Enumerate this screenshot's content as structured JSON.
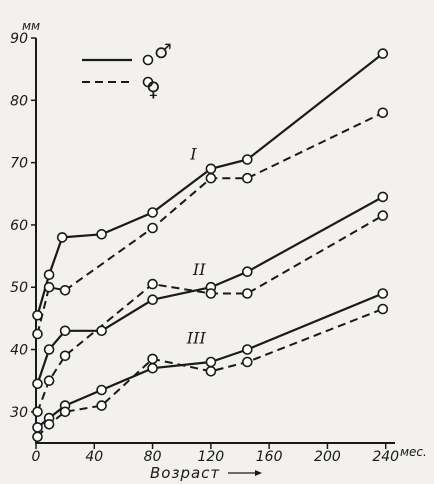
{
  "chart_data": {
    "type": "line",
    "xlabel": "Возраст",
    "xunit": "мес.",
    "yunit": "мм",
    "xlim": [
      0,
      245
    ],
    "ylim": [
      25,
      90
    ],
    "xticks": [
      0,
      40,
      80,
      120,
      160,
      200,
      240
    ],
    "xtick_labels": [
      "0",
      "40",
      "80",
      "120",
      "160",
      "200",
      "240"
    ],
    "yticks": [
      30,
      40,
      50,
      60,
      70,
      80,
      90
    ],
    "ytick_labels": [
      "30",
      "40",
      "50",
      "60",
      "70",
      "80",
      "90"
    ],
    "legend": {
      "position": "top-left",
      "entries": [
        {
          "symbol": "♂",
          "style": "solid"
        },
        {
          "symbol": "♀",
          "style": "dashed"
        }
      ]
    },
    "groups": [
      {
        "label": "I",
        "male": [
          [
            1,
            45.5
          ],
          [
            9,
            52
          ],
          [
            18,
            58
          ],
          [
            45,
            58.5
          ],
          [
            80,
            62
          ],
          [
            120,
            69
          ],
          [
            145,
            70.5
          ],
          [
            238,
            87.5
          ]
        ],
        "female": [
          [
            1,
            42.5
          ],
          [
            9,
            50
          ],
          [
            20,
            49.5
          ],
          [
            80,
            59.5
          ],
          [
            120,
            67.5
          ],
          [
            145,
            67.5
          ],
          [
            238,
            78
          ]
        ]
      },
      {
        "label": "II",
        "male": [
          [
            1,
            34.5
          ],
          [
            9,
            40
          ],
          [
            20,
            43
          ],
          [
            45,
            43
          ],
          [
            80,
            48
          ],
          [
            120,
            50
          ],
          [
            145,
            52.5
          ],
          [
            238,
            64.5
          ]
        ],
        "female": [
          [
            1,
            30
          ],
          [
            9,
            35
          ],
          [
            20,
            39
          ],
          [
            80,
            50.5
          ],
          [
            120,
            49
          ],
          [
            145,
            49
          ],
          [
            238,
            61.5
          ]
        ]
      },
      {
        "label": "III",
        "male": [
          [
            1,
            27.5
          ],
          [
            9,
            29
          ],
          [
            20,
            31
          ],
          [
            45,
            33.5
          ],
          [
            80,
            37
          ],
          [
            120,
            38
          ],
          [
            145,
            40
          ],
          [
            238,
            49
          ]
        ],
        "female": [
          [
            1,
            26
          ],
          [
            9,
            28
          ],
          [
            20,
            30
          ],
          [
            45,
            31
          ],
          [
            80,
            38.5
          ],
          [
            120,
            36.5
          ],
          [
            145,
            38
          ],
          [
            238,
            46.5
          ]
        ]
      }
    ]
  }
}
